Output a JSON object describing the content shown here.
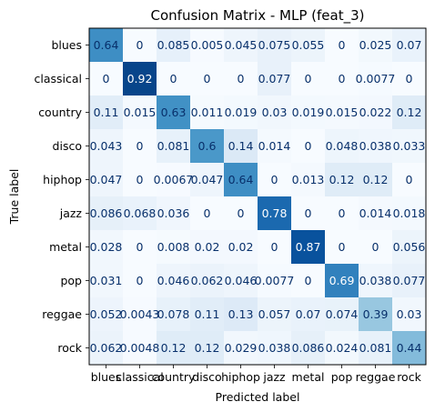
{
  "chart_data": {
    "type": "heatmap",
    "title": "Confusion Matrix - MLP (feat_3)",
    "xlabel": "Predicted label",
    "ylabel": "True label",
    "colormap": "Blues",
    "value_range": [
      0,
      1
    ],
    "x_categories": [
      "blues",
      "classical",
      "country",
      "disco",
      "hiphop",
      "jazz",
      "metal",
      "pop",
      "reggae",
      "rock"
    ],
    "y_categories": [
      "blues",
      "classical",
      "country",
      "disco",
      "hiphop",
      "jazz",
      "metal",
      "pop",
      "reggae",
      "rock"
    ],
    "values": [
      [
        0.64,
        0,
        0.085,
        0.005,
        0.045,
        0.075,
        0.055,
        0,
        0.025,
        0.07
      ],
      [
        0,
        0.92,
        0,
        0,
        0,
        0.077,
        0,
        0,
        0.0077,
        0
      ],
      [
        0.11,
        0.015,
        0.63,
        0.011,
        0.019,
        0.03,
        0.019,
        0.015,
        0.022,
        0.12
      ],
      [
        0.043,
        0,
        0.081,
        0.6,
        0.14,
        0.014,
        0,
        0.048,
        0.038,
        0.033
      ],
      [
        0.047,
        0,
        0.0067,
        0.047,
        0.64,
        0,
        0.013,
        0.12,
        0.12,
        0
      ],
      [
        0.086,
        0.068,
        0.036,
        0,
        0,
        0.78,
        0,
        0,
        0.014,
        0.018
      ],
      [
        0.028,
        0,
        0.008,
        0.02,
        0.02,
        0,
        0.87,
        0,
        0,
        0.056
      ],
      [
        0.031,
        0,
        0.046,
        0.062,
        0.046,
        0.0077,
        0,
        0.69,
        0.038,
        0.077
      ],
      [
        0.052,
        0.0043,
        0.078,
        0.11,
        0.13,
        0.057,
        0.07,
        0.074,
        0.39,
        0.03
      ],
      [
        0.062,
        0.0048,
        0.12,
        0.12,
        0.029,
        0.038,
        0.086,
        0.024,
        0.081,
        0.44
      ]
    ],
    "labels": [
      [
        "0.64",
        "0",
        "0.085",
        "0.005",
        "0.045",
        "0.075",
        "0.055",
        "0",
        "0.025",
        "0.07"
      ],
      [
        "0",
        "0.92",
        "0",
        "0",
        "0",
        "0.077",
        "0",
        "0",
        "0.0077",
        "0"
      ],
      [
        "0.11",
        "0.015",
        "0.63",
        "0.011",
        "0.019",
        "0.03",
        "0.019",
        "0.015",
        "0.022",
        "0.12"
      ],
      [
        "0.043",
        "0",
        "0.081",
        "0.6",
        "0.14",
        "0.014",
        "0",
        "0.048",
        "0.038",
        "0.033"
      ],
      [
        "0.047",
        "0",
        "0.0067",
        "0.047",
        "0.64",
        "0",
        "0.013",
        "0.12",
        "0.12",
        "0"
      ],
      [
        "0.086",
        "0.068",
        "0.036",
        "0",
        "0",
        "0.78",
        "0",
        "0",
        "0.014",
        "0.018"
      ],
      [
        "0.028",
        "0",
        "0.008",
        "0.02",
        "0.02",
        "0",
        "0.87",
        "0",
        "0",
        "0.056"
      ],
      [
        "0.031",
        "0",
        "0.046",
        "0.062",
        "0.046",
        "0.0077",
        "0",
        "0.69",
        "0.038",
        "0.077"
      ],
      [
        "0.052",
        "0.0043",
        "0.078",
        "0.11",
        "0.13",
        "0.057",
        "0.07",
        "0.074",
        "0.39",
        "0.03"
      ],
      [
        "0.062",
        "0.0048",
        "0.12",
        "0.12",
        "0.029",
        "0.038",
        "0.086",
        "0.024",
        "0.081",
        "0.44"
      ]
    ],
    "grid": false,
    "legend": "none"
  }
}
